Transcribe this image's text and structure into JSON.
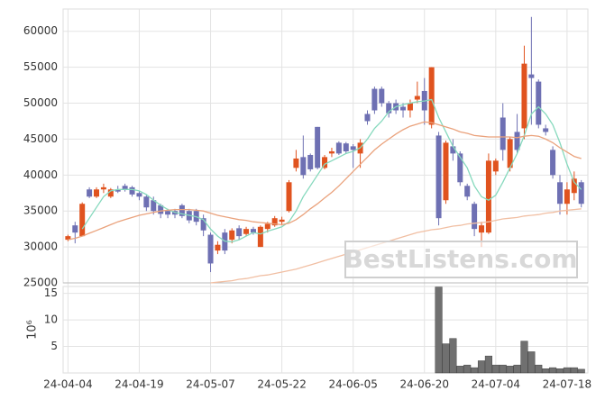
{
  "chart_data": [
    {
      "type": "candlestick",
      "categories": [
        "24-04-04",
        null,
        null,
        null,
        null,
        null,
        null,
        null,
        null,
        null,
        "24-04-19",
        null,
        null,
        null,
        null,
        null,
        null,
        null,
        null,
        null,
        "24-05-07",
        null,
        null,
        null,
        null,
        null,
        null,
        null,
        null,
        null,
        "24-05-22",
        null,
        null,
        null,
        null,
        null,
        null,
        null,
        null,
        null,
        "24-06-05",
        null,
        null,
        null,
        null,
        null,
        null,
        null,
        null,
        null,
        "24-06-20",
        null,
        null,
        null,
        null,
        null,
        null,
        null,
        null,
        null,
        "24-07-04",
        null,
        null,
        null,
        null,
        null,
        null,
        null,
        null,
        null,
        "24-07-18",
        null,
        null
      ],
      "open": [
        31000,
        33000,
        31500,
        38000,
        37000,
        38000,
        37000,
        38000,
        38500,
        38300,
        37500,
        37000,
        36500,
        35800,
        35000,
        35000,
        35800,
        35000,
        35000,
        34000,
        31700,
        29500,
        32000,
        31000,
        32600,
        31800,
        32500,
        30000,
        32500,
        33000,
        33500,
        35000,
        41000,
        42500,
        42800,
        46700,
        41000,
        43000,
        44500,
        44400,
        44000,
        43000,
        48500,
        52000,
        52000,
        50000,
        50000,
        49500,
        49000,
        50500,
        51700,
        47000,
        45500,
        36500,
        44000,
        43000,
        38500,
        36000,
        32000,
        32000,
        40500,
        48000,
        41000,
        46000,
        46500,
        54000,
        53000,
        46500,
        43500,
        39000,
        36000,
        37500,
        39000
      ],
      "high": [
        31700,
        33500,
        36200,
        38300,
        38300,
        38800,
        38200,
        38500,
        38800,
        38500,
        37800,
        37200,
        37000,
        36000,
        35300,
        35300,
        36000,
        35300,
        35300,
        34500,
        32000,
        30800,
        32500,
        32600,
        33000,
        32800,
        32800,
        33000,
        33500,
        34300,
        34200,
        39300,
        43500,
        45500,
        43000,
        46700,
        42800,
        43800,
        44700,
        44600,
        44300,
        45000,
        49000,
        52300,
        52300,
        50300,
        50500,
        50000,
        50500,
        53000,
        53500,
        55000,
        46000,
        44800,
        45000,
        43300,
        38800,
        36300,
        33500,
        43000,
        42300,
        50000,
        45300,
        48500,
        58000,
        62000,
        53300,
        47000,
        44000,
        40000,
        39000,
        40500,
        39300
      ],
      "low": [
        30800,
        30500,
        31500,
        36800,
        36800,
        37500,
        36800,
        37500,
        37700,
        37000,
        36500,
        35000,
        34500,
        34000,
        34000,
        34000,
        34000,
        33300,
        33000,
        31500,
        26500,
        29000,
        29000,
        30500,
        31000,
        31500,
        31700,
        30000,
        32000,
        32800,
        33000,
        34800,
        40500,
        39500,
        40500,
        40800,
        40800,
        42500,
        42800,
        43000,
        41000,
        41000,
        47000,
        48500,
        49500,
        48000,
        48500,
        48000,
        48000,
        50000,
        47000,
        46500,
        33000,
        36000,
        42000,
        38500,
        36500,
        31500,
        30000,
        31800,
        40000,
        42000,
        40500,
        43000,
        45000,
        47000,
        46500,
        45500,
        39500,
        34500,
        34500,
        36500,
        35500
      ],
      "close": [
        31500,
        32000,
        36000,
        37000,
        38000,
        38300,
        38000,
        37700,
        38000,
        37300,
        37000,
        35500,
        35000,
        34600,
        34500,
        34500,
        34300,
        33700,
        33500,
        32300,
        27700,
        30300,
        29500,
        32300,
        31500,
        32500,
        32000,
        32800,
        33200,
        34000,
        33800,
        39000,
        42300,
        40000,
        40800,
        41000,
        42500,
        43300,
        43000,
        43300,
        43500,
        44500,
        47500,
        49000,
        50000,
        48600,
        49000,
        49000,
        50000,
        51000,
        49000,
        55000,
        34000,
        44500,
        43000,
        39000,
        37000,
        32500,
        33000,
        42000,
        42000,
        43500,
        45000,
        43500,
        55500,
        53500,
        47000,
        46000,
        40000,
        36000,
        38000,
        39500,
        36000
      ],
      "up_color": "#e0531f",
      "down_color": "#6e70b3",
      "lines": [
        {
          "color": "#86d9bd",
          "values": [
            null,
            null,
            32500,
            34000,
            35500,
            37000,
            37800,
            38000,
            38000,
            38000,
            37800,
            37300,
            36500,
            35800,
            35200,
            34800,
            34600,
            34400,
            34200,
            33800,
            32500,
            31500,
            30800,
            30700,
            31000,
            31500,
            32000,
            31800,
            32200,
            32500,
            32800,
            33500,
            35000,
            37000,
            38500,
            40000,
            41500,
            42000,
            42500,
            43000,
            43300,
            43800,
            45000,
            46500,
            47500,
            48800,
            49500,
            49800,
            50000,
            50200,
            50300,
            50500,
            48000,
            46000,
            44000,
            42500,
            41000,
            38500,
            37000,
            36500,
            37200,
            39000,
            41000,
            43000,
            45500,
            48500,
            49500,
            48500,
            47000,
            44500,
            41500,
            39000,
            38000
          ]
        },
        {
          "color": "#eaa27c",
          "values": [
            31000,
            31200,
            31500,
            31900,
            32300,
            32700,
            33100,
            33500,
            33800,
            34100,
            34400,
            34600,
            34800,
            35000,
            35100,
            35200,
            35200,
            35200,
            35100,
            35000,
            34700,
            34400,
            34200,
            34000,
            33800,
            33700,
            33500,
            33400,
            33300,
            33200,
            33100,
            33300,
            33800,
            34500,
            35300,
            36000,
            36800,
            37600,
            38500,
            39500,
            40500,
            41500,
            42500,
            43500,
            44300,
            45000,
            45700,
            46300,
            46800,
            47100,
            47400,
            47300,
            47000,
            46700,
            46400,
            46000,
            45800,
            45500,
            45400,
            45300,
            45300,
            45300,
            45300,
            45200,
            45400,
            45500,
            45400,
            45000,
            44500,
            43800,
            43200,
            42600,
            42300
          ]
        },
        {
          "color": "#f1bfa3",
          "values": [
            null,
            null,
            null,
            null,
            null,
            null,
            null,
            null,
            null,
            null,
            null,
            null,
            null,
            null,
            null,
            null,
            null,
            null,
            null,
            null,
            25000,
            25100,
            25200,
            25300,
            25500,
            25600,
            25800,
            26000,
            26100,
            26300,
            26500,
            26700,
            26900,
            27200,
            27500,
            27800,
            28100,
            28400,
            28700,
            29000,
            29300,
            29600,
            29900,
            30200,
            30500,
            30800,
            31100,
            31400,
            31700,
            32000,
            32200,
            32400,
            32500,
            32700,
            32900,
            33000,
            33200,
            33300,
            33400,
            33500,
            33700,
            33900,
            34000,
            34100,
            34300,
            34400,
            34500,
            34700,
            34800,
            35000,
            35100,
            35200,
            35300
          ]
        }
      ],
      "ylim": [
        25000,
        63100
      ],
      "yticks": [
        25000,
        30000,
        35000,
        40000,
        45000,
        50000,
        55000,
        60000
      ],
      "grid": true,
      "watermark": "BestListens.com"
    },
    {
      "type": "bar",
      "values": [
        0,
        0,
        0,
        0,
        0,
        0,
        0,
        0,
        0,
        0,
        0,
        0,
        0,
        0,
        0,
        0,
        0,
        0,
        0,
        0,
        0,
        0,
        0,
        0,
        0,
        0,
        0,
        0,
        0,
        0,
        0,
        0,
        0,
        0,
        0,
        0,
        0,
        0,
        0,
        0,
        0,
        0,
        0,
        0,
        0,
        0,
        0,
        0,
        0,
        0,
        0,
        0,
        16.2,
        5.5,
        6.5,
        1.3,
        1.5,
        1.0,
        2.3,
        3.2,
        1.5,
        1.5,
        1.3,
        1.5,
        6.0,
        4.0,
        1.5,
        0.8,
        1.0,
        0.8,
        1.0,
        1.0,
        0.7
      ],
      "color": "#707070",
      "ylabel": "10⁶",
      "ylim": [
        0,
        16.3
      ],
      "yticks": [
        5,
        10,
        15
      ],
      "grid": true
    }
  ]
}
